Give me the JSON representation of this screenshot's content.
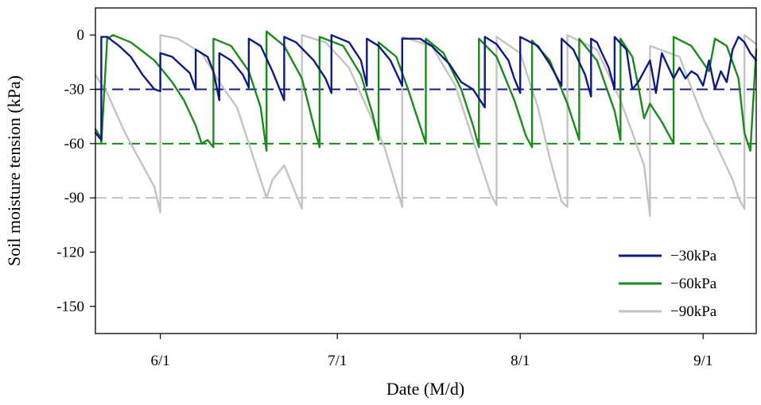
{
  "chart_data": {
    "type": "line",
    "xlabel": "Date (M/d)",
    "ylabel": "Soil moisture tension (kPa)",
    "x_range": [
      "2013-05-21",
      "2013-09-10"
    ],
    "ylim": [
      -165,
      15
    ],
    "x_ticks": [
      {
        "date": "2013-06-01",
        "label": "6/1"
      },
      {
        "date": "2013-07-01",
        "label": "7/1"
      },
      {
        "date": "2013-08-01",
        "label": "8/1"
      },
      {
        "date": "2013-09-01",
        "label": "9/1"
      }
    ],
    "y_ticks": [
      0,
      -30,
      -60,
      -90,
      -120,
      -150
    ],
    "grid": false,
    "legend_position": "bottom-right",
    "colors": {
      "s30": "#0d1a80",
      "s60": "#1a8a1a",
      "s90": "#c3c3c3"
    },
    "thresholds": [
      {
        "series": "−30kPa",
        "value": -30
      },
      {
        "series": "−60kPa",
        "value": -60
      },
      {
        "series": "−90kPa",
        "value": -90
      }
    ],
    "series": [
      {
        "name": "−30kPa",
        "color": "#0d1a80",
        "points": [
          [
            "2013-05-21",
            -54
          ],
          [
            "2013-05-22",
            -58
          ],
          [
            "2013-05-22",
            -26
          ],
          [
            "2013-05-22",
            -58
          ],
          [
            "2013-05-22",
            -1
          ],
          [
            "2013-05-23",
            -1
          ],
          [
            "2013-05-25",
            -6
          ],
          [
            "2013-05-27",
            -12
          ],
          [
            "2013-05-29",
            -22
          ],
          [
            "2013-05-31",
            -30
          ],
          [
            "2013-06-01",
            -31
          ],
          [
            "2013-06-01",
            -10
          ],
          [
            "2013-06-03",
            -12
          ],
          [
            "2013-06-05",
            -18
          ],
          [
            "2013-06-06",
            -21
          ],
          [
            "2013-06-07",
            -30
          ],
          [
            "2013-06-07",
            -8
          ],
          [
            "2013-06-09",
            -12
          ],
          [
            "2013-06-10",
            -20
          ],
          [
            "2013-06-11",
            -36
          ],
          [
            "2013-06-11",
            -10
          ],
          [
            "2013-06-13",
            -14
          ],
          [
            "2013-06-15",
            -22
          ],
          [
            "2013-06-16",
            -29
          ],
          [
            "2013-06-16",
            -2
          ],
          [
            "2013-06-18",
            -6
          ],
          [
            "2013-06-20",
            -20
          ],
          [
            "2013-06-21",
            -28
          ],
          [
            "2013-06-22",
            -36
          ],
          [
            "2013-06-22",
            -1
          ],
          [
            "2013-06-24",
            -4
          ],
          [
            "2013-06-27",
            -14
          ],
          [
            "2013-06-29",
            -24
          ],
          [
            "2013-06-30",
            -32
          ],
          [
            "2013-06-30",
            0
          ],
          [
            "2013-07-03",
            -4
          ],
          [
            "2013-07-05",
            -14
          ],
          [
            "2013-07-06",
            -28
          ],
          [
            "2013-07-06",
            -2
          ],
          [
            "2013-07-08",
            -6
          ],
          [
            "2013-07-10",
            -14
          ],
          [
            "2013-07-12",
            -28
          ],
          [
            "2013-07-12",
            -2
          ],
          [
            "2013-07-15",
            -2
          ],
          [
            "2013-07-17",
            -6
          ],
          [
            "2013-07-20",
            -16
          ],
          [
            "2013-07-22",
            -26
          ],
          [
            "2013-07-24",
            -30
          ],
          [
            "2013-07-26",
            -40
          ],
          [
            "2013-07-26",
            -1
          ],
          [
            "2013-07-28",
            -5
          ],
          [
            "2013-07-30",
            -14
          ],
          [
            "2013-07-31",
            -24
          ],
          [
            "2013-08-01",
            -32
          ],
          [
            "2013-08-01",
            -1
          ],
          [
            "2013-08-04",
            -6
          ],
          [
            "2013-08-06",
            -16
          ],
          [
            "2013-08-08",
            -28
          ],
          [
            "2013-08-08",
            -2
          ],
          [
            "2013-08-10",
            -8
          ],
          [
            "2013-08-12",
            -22
          ],
          [
            "2013-08-13",
            -34
          ],
          [
            "2013-08-13",
            -2
          ],
          [
            "2013-08-14",
            -4
          ],
          [
            "2013-08-16",
            -18
          ],
          [
            "2013-08-17",
            -30
          ],
          [
            "2013-08-17",
            -1
          ],
          [
            "2013-08-19",
            -8
          ],
          [
            "2013-08-20",
            -30
          ],
          [
            "2013-08-21",
            -26
          ],
          [
            "2013-08-23",
            -14
          ],
          [
            "2013-08-24",
            -32
          ],
          [
            "2013-08-25",
            -10
          ],
          [
            "2013-08-27",
            -24
          ],
          [
            "2013-08-28",
            -18
          ],
          [
            "2013-08-29",
            -24
          ],
          [
            "2013-08-30",
            -20
          ],
          [
            "2013-08-31",
            -22
          ],
          [
            "2013-09-01",
            -28
          ],
          [
            "2013-09-02",
            -14
          ],
          [
            "2013-09-03",
            -30
          ],
          [
            "2013-09-04",
            -20
          ],
          [
            "2013-09-05",
            -26
          ],
          [
            "2013-09-06",
            -8
          ],
          [
            "2013-09-07",
            -1
          ],
          [
            "2013-09-08",
            -4
          ],
          [
            "2013-09-09",
            -10
          ],
          [
            "2013-09-10",
            -14
          ]
        ]
      },
      {
        "name": "−60kPa",
        "color": "#1a8a1a",
        "points": [
          [
            "2013-05-21",
            -52
          ],
          [
            "2013-05-22",
            -57
          ],
          [
            "2013-05-22",
            -60
          ],
          [
            "2013-05-23",
            -2
          ],
          [
            "2013-05-24",
            0
          ],
          [
            "2013-05-27",
            -4
          ],
          [
            "2013-05-31",
            -14
          ],
          [
            "2013-06-03",
            -26
          ],
          [
            "2013-06-05",
            -36
          ],
          [
            "2013-06-07",
            -50
          ],
          [
            "2013-06-08",
            -60
          ],
          [
            "2013-06-09",
            -58
          ],
          [
            "2013-06-10",
            -62
          ],
          [
            "2013-06-10",
            -2
          ],
          [
            "2013-06-13",
            -6
          ],
          [
            "2013-06-16",
            -20
          ],
          [
            "2013-06-18",
            -40
          ],
          [
            "2013-06-19",
            -64
          ],
          [
            "2013-06-19",
            2
          ],
          [
            "2013-06-22",
            -6
          ],
          [
            "2013-06-25",
            -24
          ],
          [
            "2013-06-27",
            -50
          ],
          [
            "2013-06-28",
            -62
          ],
          [
            "2013-06-28",
            -1
          ],
          [
            "2013-07-02",
            -6
          ],
          [
            "2013-07-05",
            -22
          ],
          [
            "2013-07-07",
            -44
          ],
          [
            "2013-07-08",
            -58
          ],
          [
            "2013-07-08",
            -4
          ],
          [
            "2013-07-11",
            -12
          ],
          [
            "2013-07-13",
            -30
          ],
          [
            "2013-07-15",
            -50
          ],
          [
            "2013-07-16",
            -60
          ],
          [
            "2013-07-16",
            -2
          ],
          [
            "2013-07-19",
            -10
          ],
          [
            "2013-07-22",
            -30
          ],
          [
            "2013-07-24",
            -50
          ],
          [
            "2013-07-25",
            -62
          ],
          [
            "2013-07-25",
            -2
          ],
          [
            "2013-07-28",
            -12
          ],
          [
            "2013-07-31",
            -36
          ],
          [
            "2013-08-02",
            -56
          ],
          [
            "2013-08-03",
            -62
          ],
          [
            "2013-08-03",
            -3
          ],
          [
            "2013-08-06",
            -14
          ],
          [
            "2013-08-09",
            -38
          ],
          [
            "2013-08-11",
            -58
          ],
          [
            "2013-08-11",
            -2
          ],
          [
            "2013-08-14",
            -14
          ],
          [
            "2013-08-17",
            -42
          ],
          [
            "2013-08-18",
            -58
          ],
          [
            "2013-08-18",
            -2
          ],
          [
            "2013-08-20",
            -12
          ],
          [
            "2013-08-21",
            -28
          ],
          [
            "2013-08-22",
            -46
          ],
          [
            "2013-08-23",
            -38
          ],
          [
            "2013-08-25",
            -48
          ],
          [
            "2013-08-27",
            -60
          ],
          [
            "2013-08-27",
            -1
          ],
          [
            "2013-08-30",
            -6
          ],
          [
            "2013-09-02",
            -20
          ],
          [
            "2013-09-03",
            -2
          ],
          [
            "2013-09-05",
            -6
          ],
          [
            "2013-09-07",
            -24
          ],
          [
            "2013-09-08",
            -54
          ],
          [
            "2013-09-09",
            -64
          ],
          [
            "2013-09-10",
            -8
          ]
        ]
      },
      {
        "name": "−90kPa",
        "color": "#c3c3c3",
        "points": [
          [
            "2013-05-21",
            -22
          ],
          [
            "2013-05-23",
            -32
          ],
          [
            "2013-05-26",
            -54
          ],
          [
            "2013-05-29",
            -72
          ],
          [
            "2013-05-31",
            -84
          ],
          [
            "2013-06-01",
            -98
          ],
          [
            "2013-06-01",
            0
          ],
          [
            "2013-06-04",
            -2
          ],
          [
            "2013-06-08",
            -10
          ],
          [
            "2013-06-11",
            -26
          ],
          [
            "2013-06-14",
            -40
          ],
          [
            "2013-06-16",
            -60
          ],
          [
            "2013-06-18",
            -80
          ],
          [
            "2013-06-19",
            -90
          ],
          [
            "2013-06-20",
            -80
          ],
          [
            "2013-06-22",
            -72
          ],
          [
            "2013-06-25",
            -96
          ],
          [
            "2013-06-25",
            0
          ],
          [
            "2013-06-29",
            -4
          ],
          [
            "2013-07-03",
            -18
          ],
          [
            "2013-07-06",
            -40
          ],
          [
            "2013-07-09",
            -62
          ],
          [
            "2013-07-11",
            -84
          ],
          [
            "2013-07-12",
            -95
          ],
          [
            "2013-07-12",
            -1
          ],
          [
            "2013-07-17",
            -6
          ],
          [
            "2013-07-21",
            -28
          ],
          [
            "2013-07-24",
            -58
          ],
          [
            "2013-07-27",
            -88
          ],
          [
            "2013-07-28",
            -94
          ],
          [
            "2013-07-28",
            -1
          ],
          [
            "2013-08-01",
            -10
          ],
          [
            "2013-08-04",
            -40
          ],
          [
            "2013-08-06",
            -68
          ],
          [
            "2013-08-08",
            -92
          ],
          [
            "2013-08-09",
            -95
          ],
          [
            "2013-08-09",
            0
          ],
          [
            "2013-08-14",
            -8
          ],
          [
            "2013-08-18",
            -36
          ],
          [
            "2013-08-22",
            -72
          ],
          [
            "2013-08-23",
            -100
          ],
          [
            "2013-08-23",
            -6
          ],
          [
            "2013-08-28",
            -12
          ],
          [
            "2013-09-01",
            -46
          ],
          [
            "2013-09-04",
            -66
          ],
          [
            "2013-09-06",
            -80
          ],
          [
            "2013-09-07",
            -90
          ],
          [
            "2013-09-08",
            -96
          ],
          [
            "2013-09-08",
            0
          ],
          [
            "2013-09-10",
            -5
          ]
        ]
      }
    ]
  }
}
